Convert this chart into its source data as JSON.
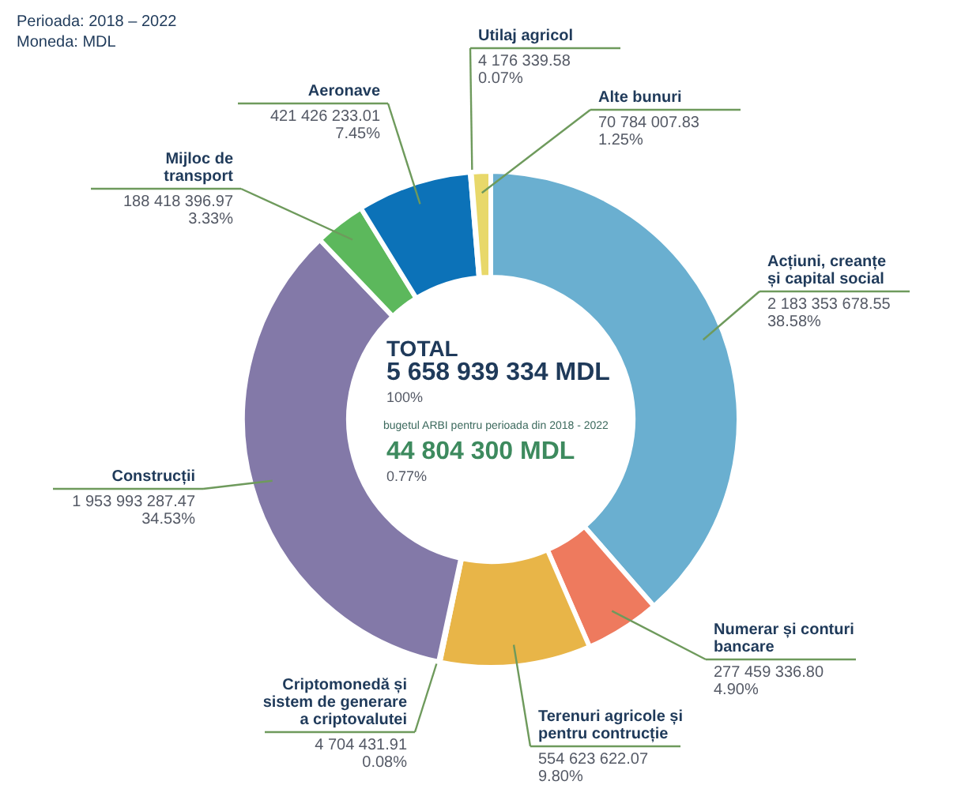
{
  "chart_data": {
    "type": "donut",
    "title": "TOTAL",
    "annotations": [
      "Perioada: 2018 – 2022",
      "Moneda: MDL",
      "5 658 939 334 MDL",
      "100%",
      "bugetul ARBI pentru perioada din 2018 - 2022",
      "44 804 300 MDL",
      "0.77%"
    ],
    "categories": [
      "Acțiuni, creanțe și capital social",
      "Numerar și conturi bancare",
      "Terenuri agricole și pentru contrucție",
      "Criptomonedă și sistem de generare a criptovalutei",
      "Construcții",
      "Mijloc de transport",
      "Aeronave",
      "Utilaj agricol",
      "Alte bunuri"
    ],
    "values": [
      2183353678.55,
      277459336.8,
      554623622.07,
      4704431.91,
      1953993287.47,
      188418396.97,
      421426233.01,
      4176339.58,
      70784007.83
    ],
    "value_labels": [
      "2 183 353 678.55\n38.58%",
      "277 459 336.80\n4.90%",
      "554 623 622.07\n9.80%",
      "4 704 431.91\n0.08%",
      "1 953 993 287.47\n34.53%",
      "188 418 396.97\n3.33%",
      "421 426 233.01\n7.45%",
      "4 176 339.58\n0.07%",
      "70 784 007.83\n1.25%"
    ],
    "colors": [
      "#6aafd0",
      "#ee7a5e",
      "#e8b548",
      "#8a9bb0",
      "#8379a8",
      "#5cb85c",
      "#0c72b8",
      "#1b3a5c",
      "#e8d86a"
    ]
  }
}
